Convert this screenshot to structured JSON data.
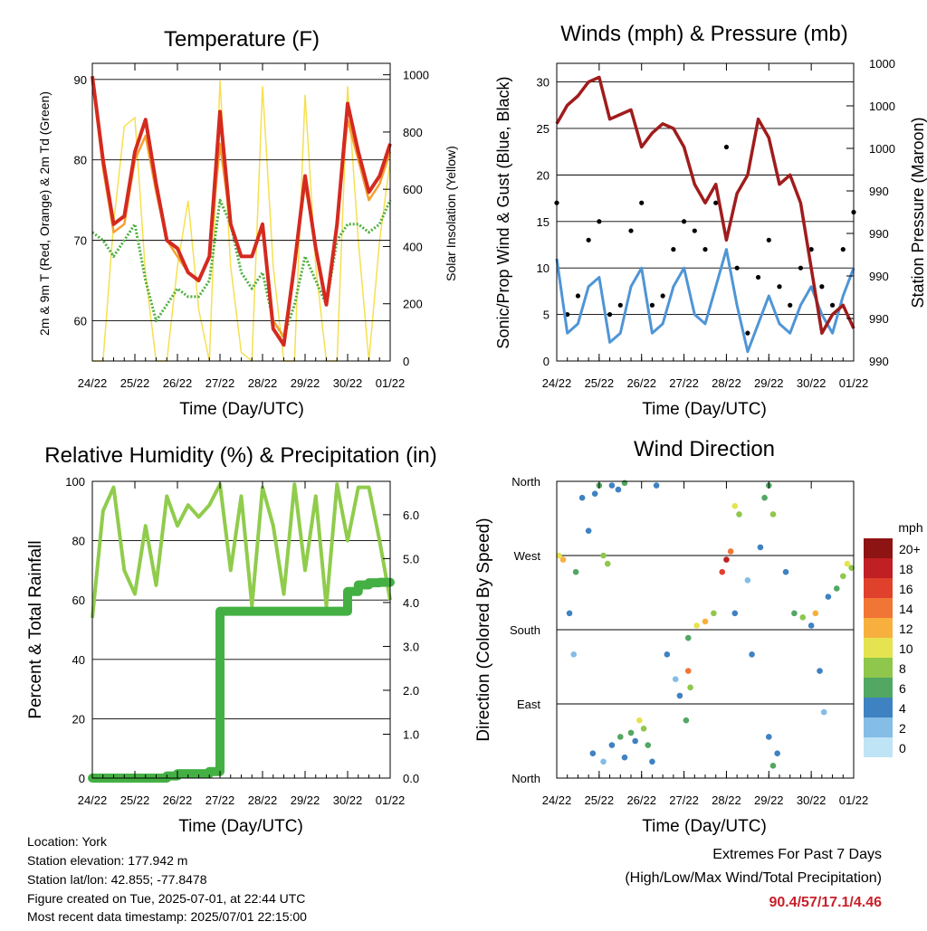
{
  "domain": "Chart",
  "footer": {
    "location": "Location: York",
    "elevation": "Station elevation: 177.942 m",
    "latlon": "Station lat/lon: 42.855; -77.8478",
    "created": "Figure created on Tue, 2025-07-01, at 22:44 UTC",
    "recent": "Most recent data timestamp: 2025/07/01 22:15:00"
  },
  "extremes": {
    "title": "Extremes For Past 7 Days",
    "subtitle": "(High/Low/Max Wind/Total Precipitation)",
    "values": "90.4/57/17.1/4.46"
  },
  "colors": {
    "temp_2m": "#d42a20",
    "temp_9m": "#f5a030",
    "dewpoint": "#4caf3c",
    "solar": "#f5e050",
    "wind": "#4f95d6",
    "gust": "#000000",
    "pressure": "#a01c1c",
    "rh": "#90cc4c",
    "precip": "#44b044"
  },
  "chart_data": [
    {
      "type": "line",
      "title": "Temperature (F)",
      "xlabel": "Time (Day/UTC)",
      "ylabel": "2m & 9m T (Red, Orange) & 2m Td (Green)",
      "y2label": "Solar Insolation (Yellow)",
      "x_ticks": [
        "24/22",
        "25/22",
        "26/22",
        "27/22",
        "28/22",
        "29/22",
        "30/22",
        "01/22"
      ],
      "ylim": [
        55,
        92
      ],
      "y_ticks": [
        60,
        70,
        80,
        90
      ],
      "y2lim": [
        0,
        1040
      ],
      "y2_ticks": [
        0,
        200,
        400,
        600,
        800,
        1000
      ],
      "grid": true,
      "x": [
        0,
        0.25,
        0.5,
        0.75,
        1,
        1.25,
        1.5,
        1.75,
        2,
        2.25,
        2.5,
        2.75,
        3,
        3.25,
        3.5,
        3.75,
        4,
        4.25,
        4.5,
        4.75,
        5,
        5.25,
        5.5,
        5.75,
        6,
        6.25,
        6.5,
        6.75,
        7
      ],
      "series": [
        {
          "values": [
            90.4,
            80,
            72,
            73,
            81,
            85,
            77,
            70,
            69,
            66,
            65,
            68,
            86,
            72,
            68,
            68,
            72,
            59,
            57,
            67,
            78,
            69,
            62,
            72,
            87,
            81,
            76,
            78,
            82
          ]
        },
        {
          "values": [
            90,
            79,
            71,
            72,
            80,
            83,
            76,
            70,
            68,
            66,
            65,
            68,
            82,
            72,
            68,
            68,
            72,
            60,
            58,
            67,
            77,
            69,
            62,
            72,
            85,
            80,
            75,
            77,
            81
          ]
        },
        {
          "values": [
            71,
            70,
            68,
            70,
            72,
            65,
            60,
            62,
            64,
            63,
            63,
            65,
            75,
            72,
            66,
            64,
            66,
            60,
            58,
            62,
            68,
            65,
            62,
            70,
            72,
            72,
            71,
            72,
            75
          ]
        },
        {
          "values": [
            0,
            0,
            480,
            820,
            850,
            300,
            0,
            0,
            330,
            560,
            180,
            0,
            980,
            330,
            30,
            0,
            960,
            330,
            0,
            0,
            930,
            330,
            0,
            0,
            960,
            420,
            0,
            420,
            700
          ]
        }
      ]
    },
    {
      "type": "line",
      "title": "Winds (mph) & Pressure (mb)",
      "xlabel": "Time (Day/UTC)",
      "ylabel": "Sonic/Prop Wind & Gust (Blue, Black)",
      "y2label": "Station Pressure (Maroon)",
      "x_ticks": [
        "24/22",
        "25/22",
        "26/22",
        "27/22",
        "28/22",
        "29/22",
        "30/22",
        "01/22"
      ],
      "ylim": [
        0,
        32
      ],
      "y_ticks": [
        0,
        5,
        10,
        15,
        20,
        25,
        30
      ],
      "y2_tick_labels": [
        "990",
        "990",
        "990",
        "990",
        "990",
        "1000",
        "1000",
        "1000"
      ],
      "grid": true,
      "x": [
        0,
        0.25,
        0.5,
        0.75,
        1,
        1.25,
        1.5,
        1.75,
        2,
        2.25,
        2.5,
        2.75,
        3,
        3.25,
        3.5,
        3.75,
        4,
        4.25,
        4.5,
        4.75,
        5,
        5.25,
        5.5,
        5.75,
        6,
        6.25,
        6.5,
        6.75,
        7
      ],
      "series": [
        {
          "values": [
            11,
            3,
            4,
            8,
            9,
            2,
            3,
            8,
            10,
            3,
            4,
            8,
            10,
            5,
            4,
            8,
            12,
            6,
            1,
            4,
            7,
            4,
            3,
            6,
            8,
            5,
            3,
            7,
            10
          ]
        },
        {
          "values": [
            17,
            5,
            7,
            13,
            15,
            5,
            6,
            14,
            17,
            6,
            7,
            12,
            15,
            14,
            12,
            17,
            23,
            10,
            3,
            9,
            13,
            8,
            6,
            10,
            12,
            8,
            6,
            12,
            16
          ]
        },
        {
          "values": [
            25.5,
            27.5,
            28.5,
            30,
            30.5,
            26,
            26.5,
            27,
            23,
            24.5,
            25.5,
            25,
            23,
            19,
            17,
            19,
            13,
            18,
            20,
            26,
            24,
            19,
            20,
            17,
            10,
            3,
            5,
            6,
            3.5
          ]
        }
      ]
    },
    {
      "type": "line",
      "title": "Relative Humidity (%) & Precipitation (in)",
      "xlabel": "Time (Day/UTC)",
      "ylabel": "Percent & Total Rainfall",
      "x_ticks": [
        "24/22",
        "25/22",
        "26/22",
        "27/22",
        "28/22",
        "29/22",
        "30/22",
        "01/22"
      ],
      "ylim": [
        0,
        100
      ],
      "y_ticks": [
        0,
        20,
        40,
        60,
        80,
        100
      ],
      "y2lim": [
        0,
        6.76
      ],
      "y2_ticks": [
        0.0,
        1.0,
        2.0,
        3.0,
        4.0,
        5.0,
        6.0
      ],
      "grid": true,
      "x": [
        0,
        0.25,
        0.5,
        0.75,
        1,
        1.25,
        1.5,
        1.75,
        2,
        2.25,
        2.5,
        2.75,
        3,
        3.25,
        3.5,
        3.75,
        4,
        4.25,
        4.5,
        4.75,
        5,
        5.25,
        5.5,
        5.75,
        6,
        6.25,
        6.5,
        6.75,
        7
      ],
      "series": [
        {
          "values": [
            54,
            90,
            98,
            70,
            62,
            85,
            65,
            95,
            85,
            92,
            88,
            92,
            99,
            70,
            95,
            58,
            98,
            85,
            62,
            99,
            70,
            95,
            58,
            99,
            80,
            98,
            98,
            80,
            60
          ]
        },
        {
          "values": [
            0,
            0,
            0,
            0,
            0,
            0,
            0,
            0.05,
            0.1,
            0.1,
            0.1,
            0.15,
            3.8,
            3.8,
            3.8,
            3.8,
            3.8,
            3.8,
            3.8,
            3.8,
            3.8,
            3.8,
            3.8,
            3.8,
            4.25,
            4.4,
            4.45,
            4.46,
            4.46
          ]
        }
      ]
    },
    {
      "type": "scatter",
      "title": "Wind Direction",
      "xlabel": "Time (Day/UTC)",
      "ylabel": "Direction (Colored By Speed)",
      "x_ticks": [
        "24/22",
        "25/22",
        "26/22",
        "27/22",
        "28/22",
        "29/22",
        "30/22",
        "01/22"
      ],
      "y_tick_labels": [
        "North",
        "East",
        "South",
        "West",
        "North"
      ],
      "ylim": [
        0,
        360
      ],
      "grid": true,
      "legend": {
        "title": "mph",
        "labels": [
          "0",
          "2",
          "4",
          "6",
          "8",
          "10",
          "12",
          "14",
          "16",
          "18",
          "20+"
        ],
        "colors": [
          "#bfe4f6",
          "#84bde6",
          "#3f82c2",
          "#52a763",
          "#8fc74c",
          "#e5e34f",
          "#f7b03e",
          "#f17535",
          "#e0412d",
          "#c01f24",
          "#8e1313"
        ],
        "position": "right"
      },
      "points": [
        {
          "x": 0.05,
          "dir": 270,
          "speed": 9
        },
        {
          "x": 0.15,
          "dir": 265,
          "speed": 11
        },
        {
          "x": 0.3,
          "dir": 200,
          "speed": 3
        },
        {
          "x": 0.4,
          "dir": 150,
          "speed": 2
        },
        {
          "x": 0.45,
          "dir": 250,
          "speed": 5
        },
        {
          "x": 0.6,
          "dir": 340,
          "speed": 4
        },
        {
          "x": 0.75,
          "dir": 300,
          "speed": 3
        },
        {
          "x": 0.9,
          "dir": 345,
          "speed": 4
        },
        {
          "x": 1.0,
          "dir": 355,
          "speed": 5
        },
        {
          "x": 1.1,
          "dir": 270,
          "speed": 7
        },
        {
          "x": 1.2,
          "dir": 260,
          "speed": 8
        },
        {
          "x": 0.85,
          "dir": 30,
          "speed": 3
        },
        {
          "x": 1.1,
          "dir": 20,
          "speed": 2
        },
        {
          "x": 1.3,
          "dir": 40,
          "speed": 4
        },
        {
          "x": 1.5,
          "dir": 50,
          "speed": 5
        },
        {
          "x": 1.6,
          "dir": 25,
          "speed": 3
        },
        {
          "x": 1.75,
          "dir": 55,
          "speed": 6
        },
        {
          "x": 1.85,
          "dir": 45,
          "speed": 4
        },
        {
          "x": 1.95,
          "dir": 70,
          "speed": 10
        },
        {
          "x": 2.05,
          "dir": 60,
          "speed": 8
        },
        {
          "x": 2.15,
          "dir": 40,
          "speed": 6
        },
        {
          "x": 2.25,
          "dir": 20,
          "speed": 3
        },
        {
          "x": 1.3,
          "dir": 355,
          "speed": 4
        },
        {
          "x": 1.45,
          "dir": 350,
          "speed": 3
        },
        {
          "x": 1.6,
          "dir": 358,
          "speed": 5
        },
        {
          "x": 2.35,
          "dir": 355,
          "speed": 3
        },
        {
          "x": 2.6,
          "dir": 150,
          "speed": 3
        },
        {
          "x": 2.8,
          "dir": 120,
          "speed": 2
        },
        {
          "x": 2.9,
          "dir": 100,
          "speed": 4
        },
        {
          "x": 3.05,
          "dir": 70,
          "speed": 6
        },
        {
          "x": 3.1,
          "dir": 130,
          "speed": 13
        },
        {
          "x": 3.15,
          "dir": 110,
          "speed": 8
        },
        {
          "x": 3.1,
          "dir": 170,
          "speed": 5
        },
        {
          "x": 3.3,
          "dir": 185,
          "speed": 10
        },
        {
          "x": 3.5,
          "dir": 190,
          "speed": 11
        },
        {
          "x": 3.7,
          "dir": 200,
          "speed": 8
        },
        {
          "x": 3.9,
          "dir": 250,
          "speed": 15
        },
        {
          "x": 4.0,
          "dir": 265,
          "speed": 17
        },
        {
          "x": 4.1,
          "dir": 275,
          "speed": 13
        },
        {
          "x": 4.2,
          "dir": 330,
          "speed": 9
        },
        {
          "x": 4.3,
          "dir": 320,
          "speed": 7
        },
        {
          "x": 4.2,
          "dir": 200,
          "speed": 3
        },
        {
          "x": 4.5,
          "dir": 240,
          "speed": 2
        },
        {
          "x": 4.6,
          "dir": 150,
          "speed": 3
        },
        {
          "x": 4.8,
          "dir": 280,
          "speed": 4
        },
        {
          "x": 4.9,
          "dir": 340,
          "speed": 5
        },
        {
          "x": 5.0,
          "dir": 355,
          "speed": 6
        },
        {
          "x": 5.1,
          "dir": 320,
          "speed": 7
        },
        {
          "x": 5.0,
          "dir": 50,
          "speed": 3
        },
        {
          "x": 5.1,
          "dir": 15,
          "speed": 5
        },
        {
          "x": 5.2,
          "dir": 30,
          "speed": 4
        },
        {
          "x": 5.4,
          "dir": 250,
          "speed": 3
        },
        {
          "x": 5.6,
          "dir": 200,
          "speed": 5
        },
        {
          "x": 5.8,
          "dir": 195,
          "speed": 7
        },
        {
          "x": 6.0,
          "dir": 185,
          "speed": 4
        },
        {
          "x": 6.1,
          "dir": 200,
          "speed": 12
        },
        {
          "x": 6.2,
          "dir": 130,
          "speed": 3
        },
        {
          "x": 6.3,
          "dir": 80,
          "speed": 2
        },
        {
          "x": 6.4,
          "dir": 220,
          "speed": 4
        },
        {
          "x": 6.6,
          "dir": 230,
          "speed": 6
        },
        {
          "x": 6.75,
          "dir": 245,
          "speed": 7
        },
        {
          "x": 6.85,
          "dir": 260,
          "speed": 9
        },
        {
          "x": 6.95,
          "dir": 255,
          "speed": 8
        }
      ]
    }
  ]
}
